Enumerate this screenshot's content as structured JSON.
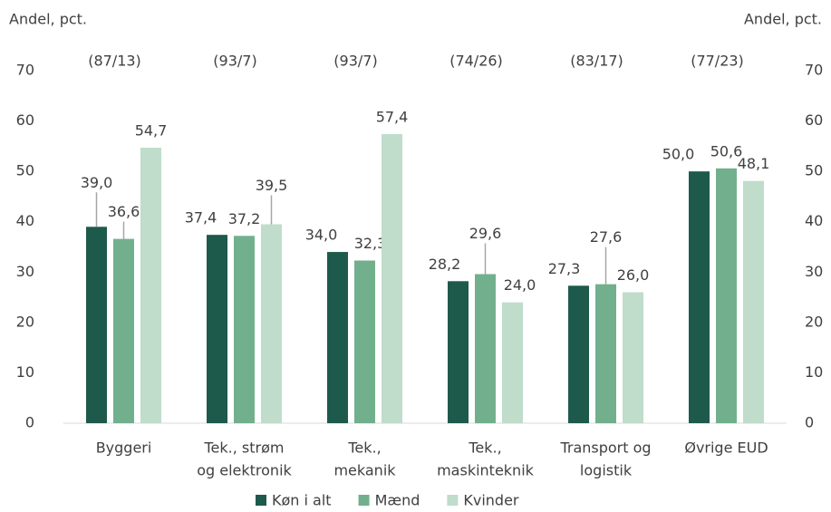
{
  "chart_data": {
    "type": "bar",
    "y_label": "Andel, pct.",
    "y2_label": "Andel, pct.",
    "categories": [
      [
        "Byggeri"
      ],
      [
        "Tek., strøm",
        "og elektronik"
      ],
      [
        "Tek.,",
        "mekanik"
      ],
      [
        "Tek.,",
        "maskinteknik"
      ],
      [
        "Transport og",
        "logistik"
      ],
      [
        "Øvrige EUD"
      ]
    ],
    "annotations": [
      "(87/13)",
      "(93/7)",
      "(93/7)",
      "(74/26)",
      "(83/17)",
      "(77/23)"
    ],
    "series": [
      {
        "name": "Køn i alt",
        "color": "#1e5a4b",
        "values": [
          39.0,
          37.4,
          34.0,
          28.2,
          27.3,
          50.0
        ],
        "value_labels": [
          "39,0",
          "37,4",
          "34,0",
          "28,2",
          "27,3",
          "50,0"
        ]
      },
      {
        "name": "Mænd",
        "color": "#72b08d",
        "values": [
          36.6,
          37.2,
          32.3,
          29.6,
          27.6,
          50.6
        ],
        "value_labels": [
          "36,6",
          "37,2",
          "32,3",
          "29,6",
          "27,6",
          "50,6"
        ]
      },
      {
        "name": "Kvinder",
        "color": "#c0dccb",
        "values": [
          54.7,
          39.5,
          57.4,
          24.0,
          26.0,
          48.1
        ],
        "value_labels": [
          "54,7",
          "39,5",
          "57,4",
          "24,0",
          "26,0",
          "48,1"
        ]
      }
    ],
    "ylim": [
      0,
      70
    ],
    "yticks": [
      0,
      10,
      20,
      30,
      40,
      50,
      60,
      70
    ],
    "y2lim": [
      0,
      70
    ],
    "y2ticks": [
      0,
      10,
      20,
      30,
      40,
      50,
      60,
      70
    ],
    "grid": false,
    "legend": "bottom"
  }
}
